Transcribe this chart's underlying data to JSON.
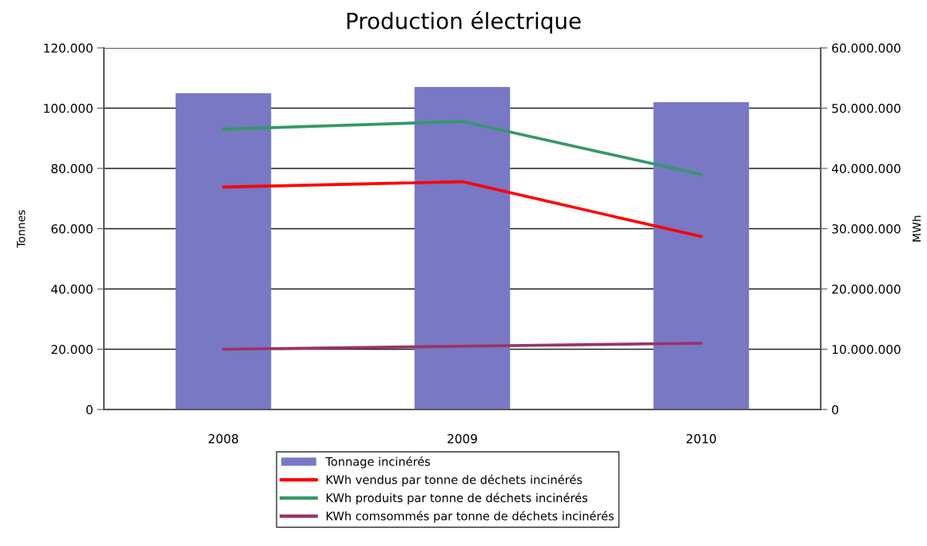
{
  "chart_data": {
    "type": "bar",
    "title": "Production électrique",
    "ylabel": "Tonnes",
    "y2label": "MWh",
    "categories": [
      "2008",
      "2009",
      "2010"
    ],
    "series": [
      {
        "name": "Tonnage incinérés",
        "color": "#7878c4",
        "values": [
          105000,
          107000,
          102000
        ]
      },
      {
        "name": "KWh vendus par tonne de déchets incinérés",
        "type": "line",
        "axis": "y2",
        "color": "#ff0000",
        "values": [
          36900000,
          37800000,
          28700000
        ]
      },
      {
        "name": "KWh produits par tonne de déchets incinérés",
        "type": "line",
        "axis": "y2",
        "color": "#339966",
        "values": [
          46500000,
          47800000,
          39000000
        ]
      },
      {
        "name": "KWh comsommés par tonne de déchets incinérés",
        "type": "line",
        "axis": "y2",
        "color": "#993366",
        "values": [
          10000000,
          10500000,
          11000000
        ]
      }
    ],
    "ylim": [
      0,
      120000
    ],
    "yticks": [
      0,
      {
        "value": 20000,
        "label": "20.000"
      },
      {
        "value": 40000,
        "label": "40.000"
      },
      {
        "value": 60000,
        "label": "60.000"
      },
      {
        "value": 80000,
        "label": "80.000"
      },
      {
        "value": 100000,
        "label": "100.000"
      },
      {
        "value": 120000,
        "label": "120.000"
      }
    ],
    "y2lim": [
      0,
      60000000
    ],
    "y2ticks": [
      0,
      {
        "value": 10000000,
        "label": "10.000.000"
      },
      {
        "value": 20000000,
        "label": "20.000.000"
      },
      {
        "value": 30000000,
        "label": "30.000.000"
      },
      {
        "value": 40000000,
        "label": "40.000.000"
      },
      {
        "value": 50000000,
        "label": "50.000.000"
      },
      {
        "value": 60000000,
        "label": "60.000.000"
      }
    ],
    "grid": "y",
    "legend": "bottom"
  }
}
